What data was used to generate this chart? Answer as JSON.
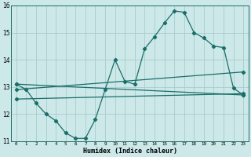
{
  "xlabel": "Humidex (Indice chaleur)",
  "bg_color": "#cce8e8",
  "line_color": "#1a6e6a",
  "grid_color": "#aacccc",
  "xlim": [
    -0.5,
    23.5
  ],
  "ylim": [
    11,
    16
  ],
  "xticks": [
    0,
    1,
    2,
    3,
    4,
    5,
    6,
    7,
    8,
    9,
    10,
    11,
    12,
    13,
    14,
    15,
    16,
    17,
    18,
    19,
    20,
    21,
    22,
    23
  ],
  "yticks": [
    11,
    12,
    13,
    14,
    15,
    16
  ],
  "series1_x": [
    0,
    1,
    2,
    3,
    4,
    5,
    6,
    7,
    8,
    9,
    10,
    11,
    12,
    13,
    14,
    15,
    16,
    17,
    18,
    19,
    20,
    21,
    22,
    23
  ],
  "series1_y": [
    13.1,
    12.9,
    12.4,
    12.0,
    11.75,
    11.3,
    11.1,
    11.1,
    11.8,
    12.9,
    14.0,
    13.2,
    13.1,
    14.4,
    14.85,
    15.35,
    15.8,
    15.75,
    15.0,
    14.8,
    14.5,
    14.45,
    12.95,
    12.7
  ],
  "series2_x": [
    0,
    23
  ],
  "series2_y": [
    13.1,
    12.7
  ],
  "series3_x": [
    0,
    23
  ],
  "series3_y": [
    12.9,
    13.55
  ],
  "series4_x": [
    0,
    23
  ],
  "series4_y": [
    12.55,
    12.75
  ]
}
